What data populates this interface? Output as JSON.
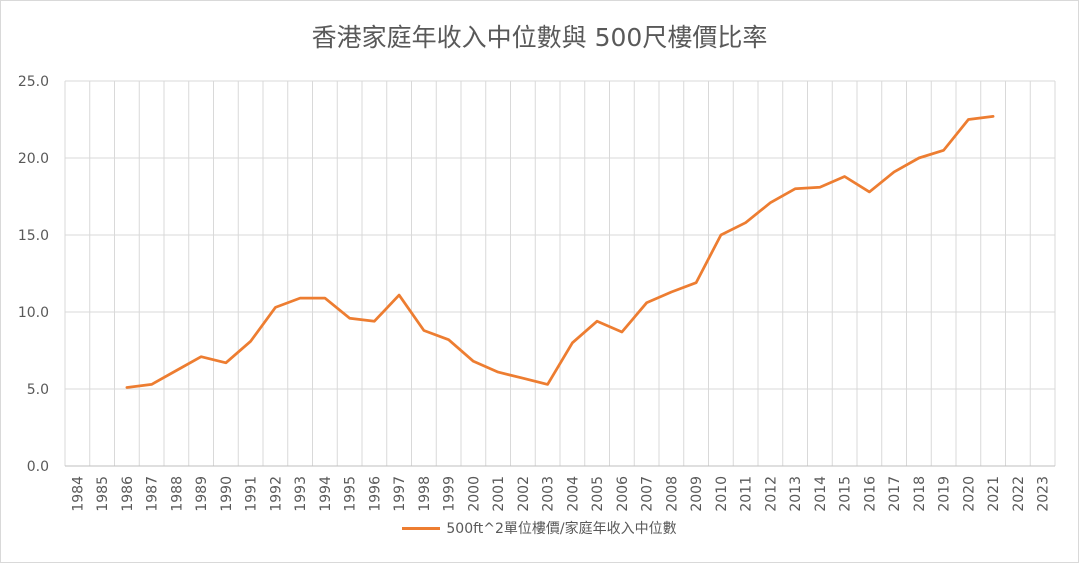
{
  "chart_data": {
    "type": "line",
    "title": "香港家庭年收入中位數與 500尺樓價比率",
    "xlabel": "",
    "ylabel": "",
    "ylim": [
      0,
      25
    ],
    "yticks": [
      "0.0",
      "5.0",
      "10.0",
      "15.0",
      "20.0",
      "25.0"
    ],
    "categories": [
      "1984",
      "1985",
      "1986",
      "1987",
      "1988",
      "1989",
      "1990",
      "1991",
      "1992",
      "1993",
      "1994",
      "1995",
      "1996",
      "1997",
      "1998",
      "1999",
      "2000",
      "2001",
      "2002",
      "2003",
      "2004",
      "2005",
      "2006",
      "2007",
      "2008",
      "2009",
      "2010",
      "2011",
      "2012",
      "2013",
      "2014",
      "2015",
      "2016",
      "2017",
      "2018",
      "2019",
      "2020",
      "2021",
      "2022",
      "2023"
    ],
    "grid": true,
    "legend_position": "bottom",
    "series": [
      {
        "name": "500ft^2單位樓價/家庭年收入中位數",
        "color": "#ed7d31",
        "values": [
          null,
          null,
          5.1,
          5.3,
          6.2,
          7.1,
          6.7,
          8.1,
          10.3,
          10.9,
          10.9,
          9.6,
          9.4,
          11.1,
          8.8,
          8.2,
          6.8,
          6.1,
          5.7,
          5.3,
          8.0,
          9.4,
          8.7,
          10.6,
          11.3,
          11.9,
          15.0,
          15.8,
          17.1,
          18.0,
          18.1,
          18.8,
          17.8,
          19.1,
          20.0,
          20.5,
          22.5,
          22.7,
          null,
          null
        ]
      }
    ]
  }
}
